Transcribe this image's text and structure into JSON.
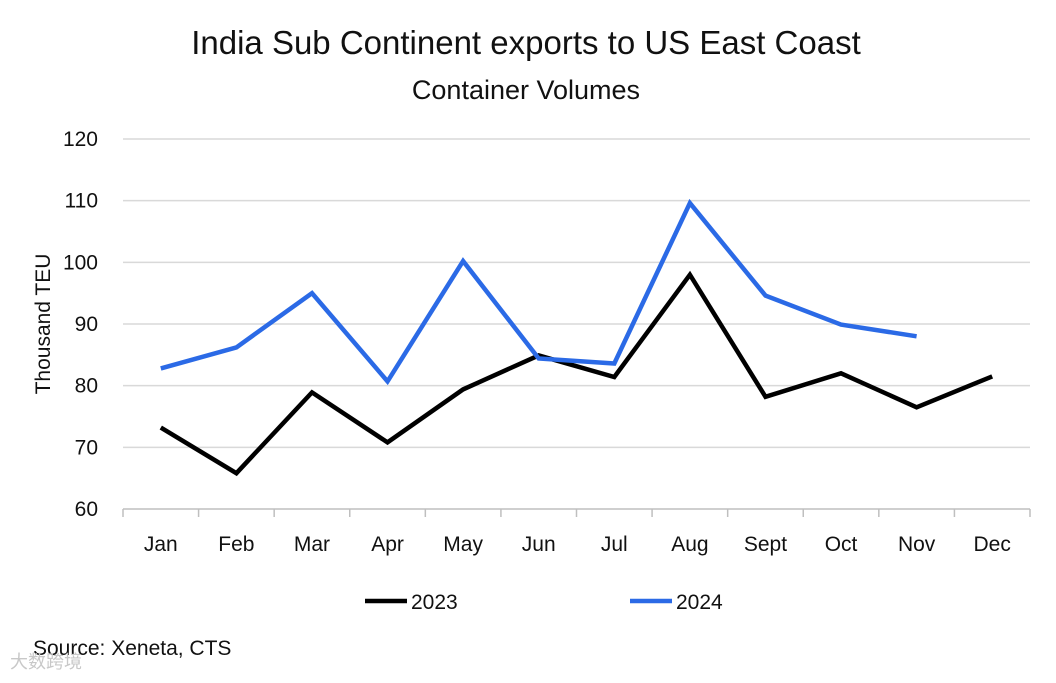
{
  "chart_data": {
    "type": "line",
    "title": "India Sub Continent exports to US East Coast",
    "subtitle": "Container Volumes",
    "xlabel": "",
    "ylabel": "Thousand TEU",
    "ylim": [
      60,
      120
    ],
    "yticks": [
      "60",
      "70",
      "80",
      "90",
      "100",
      "110",
      "120"
    ],
    "categories": [
      "Jan",
      "Feb",
      "Mar",
      "Apr",
      "May",
      "Jun",
      "Jul",
      "Aug",
      "Sept",
      "Oct",
      "Nov",
      "Dec"
    ],
    "grid": true,
    "legend_position": "bottom",
    "series": [
      {
        "name": "2023",
        "color": "#000000",
        "values": [
          73.2,
          65.8,
          78.9,
          70.8,
          79.4,
          84.9,
          81.4,
          98.0,
          78.2,
          82.0,
          76.5,
          81.5
        ]
      },
      {
        "name": "2024",
        "color": "#2b6ae6",
        "values": [
          82.8,
          86.2,
          95.0,
          80.7,
          100.2,
          84.4,
          83.6,
          109.6,
          94.6,
          89.9,
          88.0,
          null
        ]
      }
    ]
  },
  "source": "Source: Xeneta, CTS",
  "watermark": "大数跨境"
}
